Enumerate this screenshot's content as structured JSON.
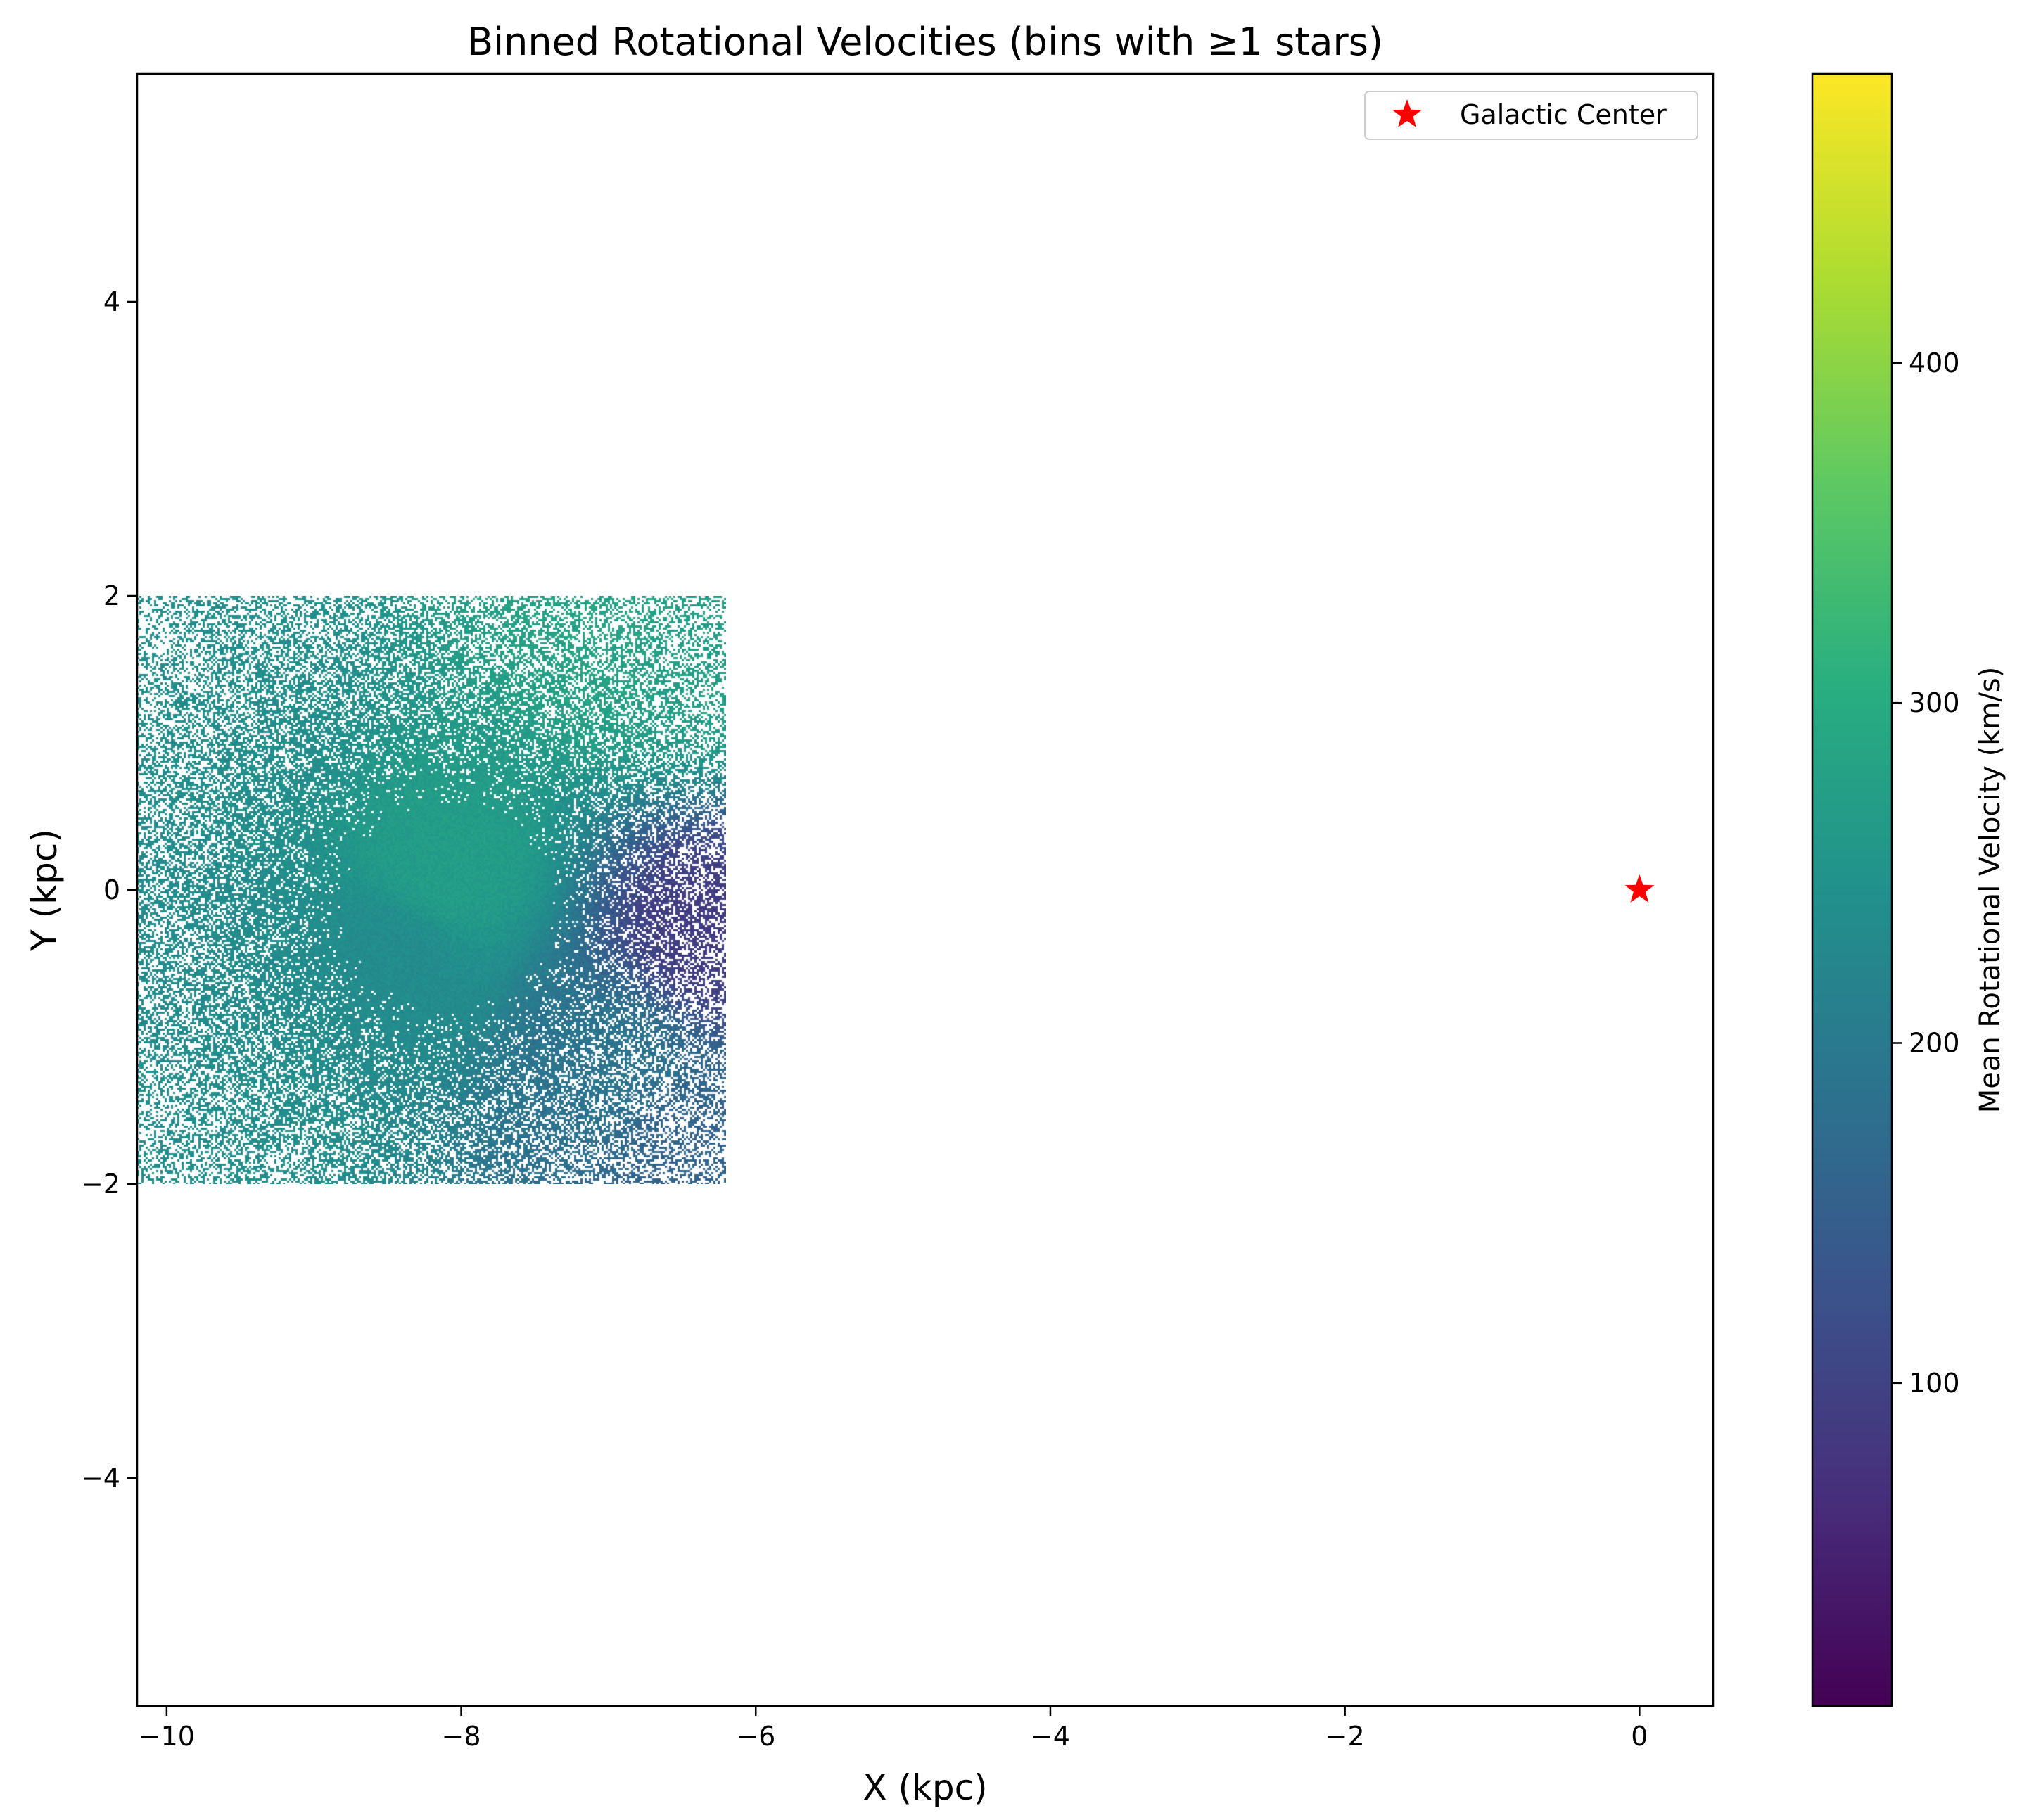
{
  "chart_data": {
    "type": "heatmap",
    "title": "Binned Rotational Velocities (bins with ≥1 stars)",
    "xlabel": "X (kpc)",
    "ylabel": "Y (kpc)",
    "xlim": [
      -10.2,
      0.5
    ],
    "ylim": [
      -5.55,
      5.55
    ],
    "x_ticks": [
      -10,
      -8,
      -6,
      -4,
      -2,
      0
    ],
    "y_ticks": [
      -4,
      -2,
      0,
      2,
      4
    ],
    "x_tick_labels": [
      "−10",
      "−8",
      "−6",
      "−4",
      "−2",
      "0"
    ],
    "y_tick_labels": [
      "−4",
      "−2",
      "0",
      "2",
      "4"
    ],
    "grid": false,
    "data_region": {
      "x_range": [
        -10.2,
        -6.2
      ],
      "y_range": [
        -2.0,
        2.0
      ]
    },
    "density_center": [
      -8.1,
      -0.1
    ],
    "velocity_field": [
      {
        "x": -8.1,
        "y": 0.2,
        "value": 270
      },
      {
        "x": -8.5,
        "y": -0.5,
        "value": 235
      },
      {
        "x": -7.0,
        "y": 1.7,
        "value": 280
      },
      {
        "x": -6.4,
        "y": 1.6,
        "value": 270
      },
      {
        "x": -9.5,
        "y": 1.2,
        "value": 240
      },
      {
        "x": -9.8,
        "y": -0.3,
        "value": 235
      },
      {
        "x": -9.5,
        "y": -1.7,
        "value": 240
      },
      {
        "x": -6.5,
        "y": -1.7,
        "value": 160
      },
      {
        "x": -7.0,
        "y": -1.2,
        "value": 190
      },
      {
        "x": -6.3,
        "y": -0.28,
        "value": 90
      }
    ],
    "colorbar": {
      "label": "Mean Rotational Velocity (km/s)",
      "cmap": "viridis",
      "vmin": 5,
      "vmax": 485,
      "ticks": [
        100,
        200,
        300,
        400
      ],
      "tick_labels": [
        "100",
        "200",
        "300",
        "400"
      ]
    },
    "markers": [
      {
        "name": "Galactic Center",
        "x": 0,
        "y": 0,
        "marker": "star",
        "color": "#ff0000"
      }
    ],
    "legend": {
      "position": "top-right",
      "entries": [
        "Galactic Center"
      ]
    }
  }
}
